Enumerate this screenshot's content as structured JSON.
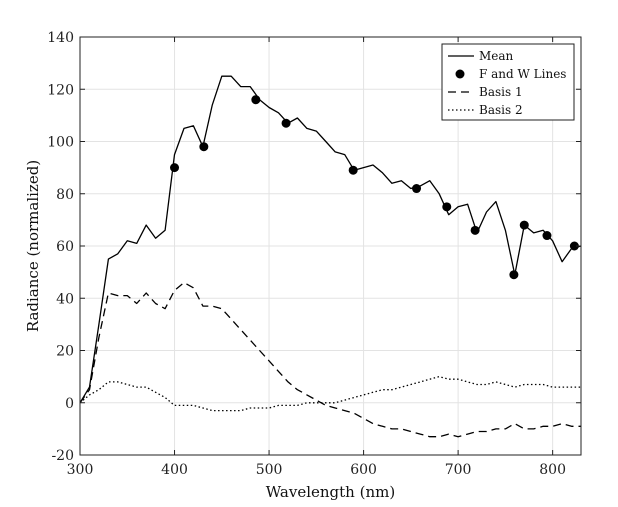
{
  "chart_data": {
    "type": "line",
    "title": "",
    "xlabel": "Wavelength (nm)",
    "ylabel": "Radiance (normalized)",
    "xlim": [
      300,
      830
    ],
    "ylim": [
      -20,
      140
    ],
    "xticks": [
      300,
      400,
      500,
      600,
      700,
      800
    ],
    "yticks": [
      -20,
      0,
      20,
      40,
      60,
      80,
      100,
      120,
      140
    ],
    "grid": true,
    "legend_position": "top-right",
    "series": [
      {
        "name": "Mean",
        "style": "solid",
        "color": "#000000",
        "x": [
          300,
          310,
          320,
          330,
          340,
          350,
          360,
          370,
          380,
          390,
          400,
          410,
          420,
          430,
          440,
          450,
          460,
          470,
          480,
          490,
          500,
          510,
          520,
          530,
          540,
          550,
          560,
          570,
          580,
          590,
          600,
          610,
          620,
          630,
          640,
          650,
          660,
          670,
          680,
          690,
          700,
          710,
          720,
          730,
          740,
          750,
          760,
          770,
          780,
          790,
          800,
          810,
          820,
          830
        ],
        "y": [
          0,
          6,
          30,
          55,
          57,
          62,
          61,
          68,
          63,
          66,
          95,
          105,
          106,
          98,
          114,
          125,
          125,
          121,
          121,
          116,
          113,
          111,
          107,
          109,
          105,
          104,
          100,
          96,
          95,
          89,
          90,
          91,
          88,
          84,
          85,
          82,
          83,
          85,
          80,
          72,
          75,
          76,
          65,
          73,
          77,
          66,
          49,
          68,
          65,
          66,
          62,
          54,
          59,
          60
        ]
      },
      {
        "name": "F and W Lines",
        "style": "markers",
        "color": "#000000",
        "x": [
          400,
          431,
          486,
          518,
          589,
          656,
          688,
          718,
          759,
          770,
          794,
          823
        ],
        "y": [
          90,
          98,
          116,
          107,
          89,
          82,
          75,
          66,
          49,
          68,
          64,
          60
        ]
      },
      {
        "name": "Basis 1",
        "style": "dashed",
        "color": "#000000",
        "x": [
          300,
          310,
          320,
          330,
          340,
          350,
          360,
          370,
          380,
          390,
          400,
          410,
          420,
          430,
          440,
          450,
          460,
          470,
          480,
          490,
          500,
          510,
          520,
          530,
          540,
          550,
          560,
          570,
          580,
          590,
          600,
          610,
          620,
          630,
          640,
          650,
          660,
          670,
          680,
          690,
          700,
          710,
          720,
          730,
          740,
          750,
          760,
          770,
          780,
          790,
          800,
          810,
          820,
          830
        ],
        "y": [
          0,
          5,
          25,
          42,
          41,
          41,
          38,
          42,
          38,
          36,
          43,
          46,
          44,
          37,
          37,
          36,
          32,
          28,
          24,
          20,
          16,
          12,
          8,
          5,
          3,
          1,
          -1,
          -2,
          -3,
          -4,
          -6,
          -8,
          -9,
          -10,
          -10,
          -11,
          -12,
          -13,
          -13,
          -12,
          -13,
          -12,
          -11,
          -11,
          -10,
          -10,
          -8,
          -10,
          -10,
          -9,
          -9,
          -8,
          -9,
          -9
        ]
      },
      {
        "name": "Basis 2",
        "style": "dotted",
        "color": "#000000",
        "x": [
          300,
          310,
          320,
          330,
          340,
          350,
          360,
          370,
          380,
          390,
          400,
          410,
          420,
          430,
          440,
          450,
          460,
          470,
          480,
          490,
          500,
          510,
          520,
          530,
          540,
          550,
          560,
          570,
          580,
          590,
          600,
          610,
          620,
          630,
          640,
          650,
          660,
          670,
          680,
          690,
          700,
          710,
          720,
          730,
          740,
          750,
          760,
          770,
          780,
          790,
          800,
          810,
          820,
          830
        ],
        "y": [
          0,
          3,
          5,
          8,
          8,
          7,
          6,
          6,
          4,
          2,
          -1,
          -1,
          -1,
          -2,
          -3,
          -3,
          -3,
          -3,
          -2,
          -2,
          -2,
          -1,
          -1,
          -1,
          0,
          0,
          0,
          0,
          1,
          2,
          3,
          4,
          5,
          5,
          6,
          7,
          8,
          9,
          10,
          9,
          9,
          8,
          7,
          7,
          8,
          7,
          6,
          7,
          7,
          7,
          6,
          6,
          6,
          6
        ]
      }
    ]
  }
}
